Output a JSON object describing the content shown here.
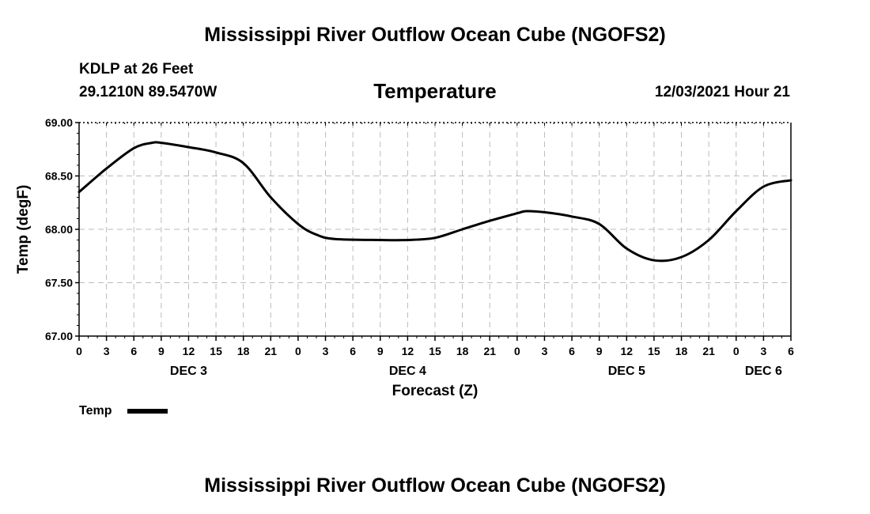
{
  "header": {
    "title": "Mississippi River Outflow Ocean Cube (NGOFS2)",
    "footer_title": "Mississippi River Outflow Ocean Cube (NGOFS2)",
    "station": "KDLP at 26 Feet",
    "coords": "29.1210N  89.5470W",
    "datetime": "12/03/2021 Hour 21"
  },
  "legend": {
    "label": "Temp"
  },
  "chart_data": {
    "type": "line",
    "title": "Temperature",
    "xlabel": "Forecast (Z)",
    "ylabel": "Temp (degF)",
    "ylim": [
      67.0,
      69.0
    ],
    "xlim": [
      0,
      78
    ],
    "y_ticks": [
      "67.00",
      "67.50",
      "68.00",
      "68.50",
      "69.00"
    ],
    "x_tick_labels": [
      "0",
      "3",
      "6",
      "9",
      "12",
      "15",
      "18",
      "21",
      "0",
      "3",
      "6",
      "9",
      "12",
      "15",
      "18",
      "21",
      "0",
      "3",
      "6",
      "9",
      "12",
      "15",
      "18",
      "21",
      "0",
      "3",
      "6"
    ],
    "day_labels": [
      {
        "label": "DEC 3",
        "hour": 12
      },
      {
        "label": "DEC 4",
        "hour": 36
      },
      {
        "label": "DEC 5",
        "hour": 60
      },
      {
        "label": "DEC 6",
        "hour": 75
      }
    ],
    "grid": true,
    "series": [
      {
        "name": "Temp",
        "color": "#000000",
        "x": [
          0,
          3,
          6,
          8,
          9,
          12,
          15,
          18,
          21,
          24,
          26,
          28,
          33,
          36,
          39,
          42,
          45,
          48,
          49,
          51,
          54,
          57,
          60,
          63,
          66,
          69,
          72,
          75,
          78
        ],
        "y": [
          68.35,
          68.57,
          68.76,
          68.81,
          68.81,
          68.77,
          68.72,
          68.62,
          68.3,
          68.05,
          67.95,
          67.91,
          67.9,
          67.9,
          67.92,
          68.0,
          68.08,
          68.15,
          68.17,
          68.16,
          68.12,
          68.05,
          67.82,
          67.71,
          67.74,
          67.9,
          68.17,
          68.4,
          68.46
        ]
      }
    ]
  }
}
